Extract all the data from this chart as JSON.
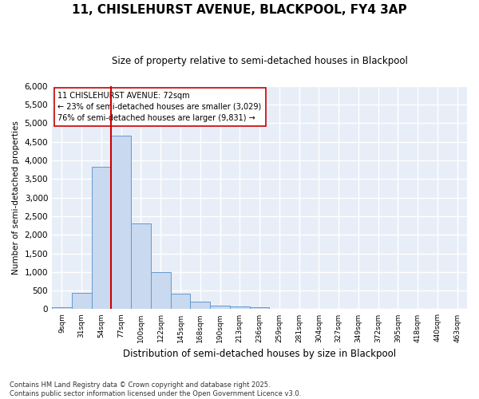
{
  "title_line1": "11, CHISLEHURST AVENUE, BLACKPOOL, FY4 3AP",
  "title_line2": "Size of property relative to semi-detached houses in Blackpool",
  "xlabel": "Distribution of semi-detached houses by size in Blackpool",
  "ylabel": "Number of semi-detached properties",
  "bin_labels": [
    "9sqm",
    "31sqm",
    "54sqm",
    "77sqm",
    "100sqm",
    "122sqm",
    "145sqm",
    "168sqm",
    "190sqm",
    "213sqm",
    "236sqm",
    "259sqm",
    "281sqm",
    "304sqm",
    "327sqm",
    "349sqm",
    "372sqm",
    "395sqm",
    "418sqm",
    "440sqm",
    "463sqm"
  ],
  "bar_values": [
    55,
    440,
    3820,
    4670,
    2300,
    1000,
    410,
    210,
    100,
    70,
    55,
    0,
    0,
    0,
    0,
    0,
    0,
    0,
    0,
    0,
    0
  ],
  "bar_color": "#c8d9f0",
  "bar_edge_color": "#6699cc",
  "vline_x_index": 3,
  "annotation_text": "11 CHISLEHURST AVENUE: 72sqm\n← 23% of semi-detached houses are smaller (3,029)\n76% of semi-detached houses are larger (9,831) →",
  "ylim": [
    0,
    6000
  ],
  "yticks": [
    0,
    500,
    1000,
    1500,
    2000,
    2500,
    3000,
    3500,
    4000,
    4500,
    5000,
    5500,
    6000
  ],
  "footnote": "Contains HM Land Registry data © Crown copyright and database right 2025.\nContains public sector information licensed under the Open Government Licence v3.0.",
  "bg_color": "#ffffff",
  "plot_bg_color": "#e8eef8",
  "grid_color": "#ffffff",
  "vline_color": "#cc0000",
  "annotation_fontsize": 7.0,
  "title1_fontsize": 11,
  "title2_fontsize": 8.5,
  "xlabel_fontsize": 8.5,
  "ylabel_fontsize": 7.5,
  "tick_fontsize": 6.5,
  "footnote_fontsize": 6.0
}
